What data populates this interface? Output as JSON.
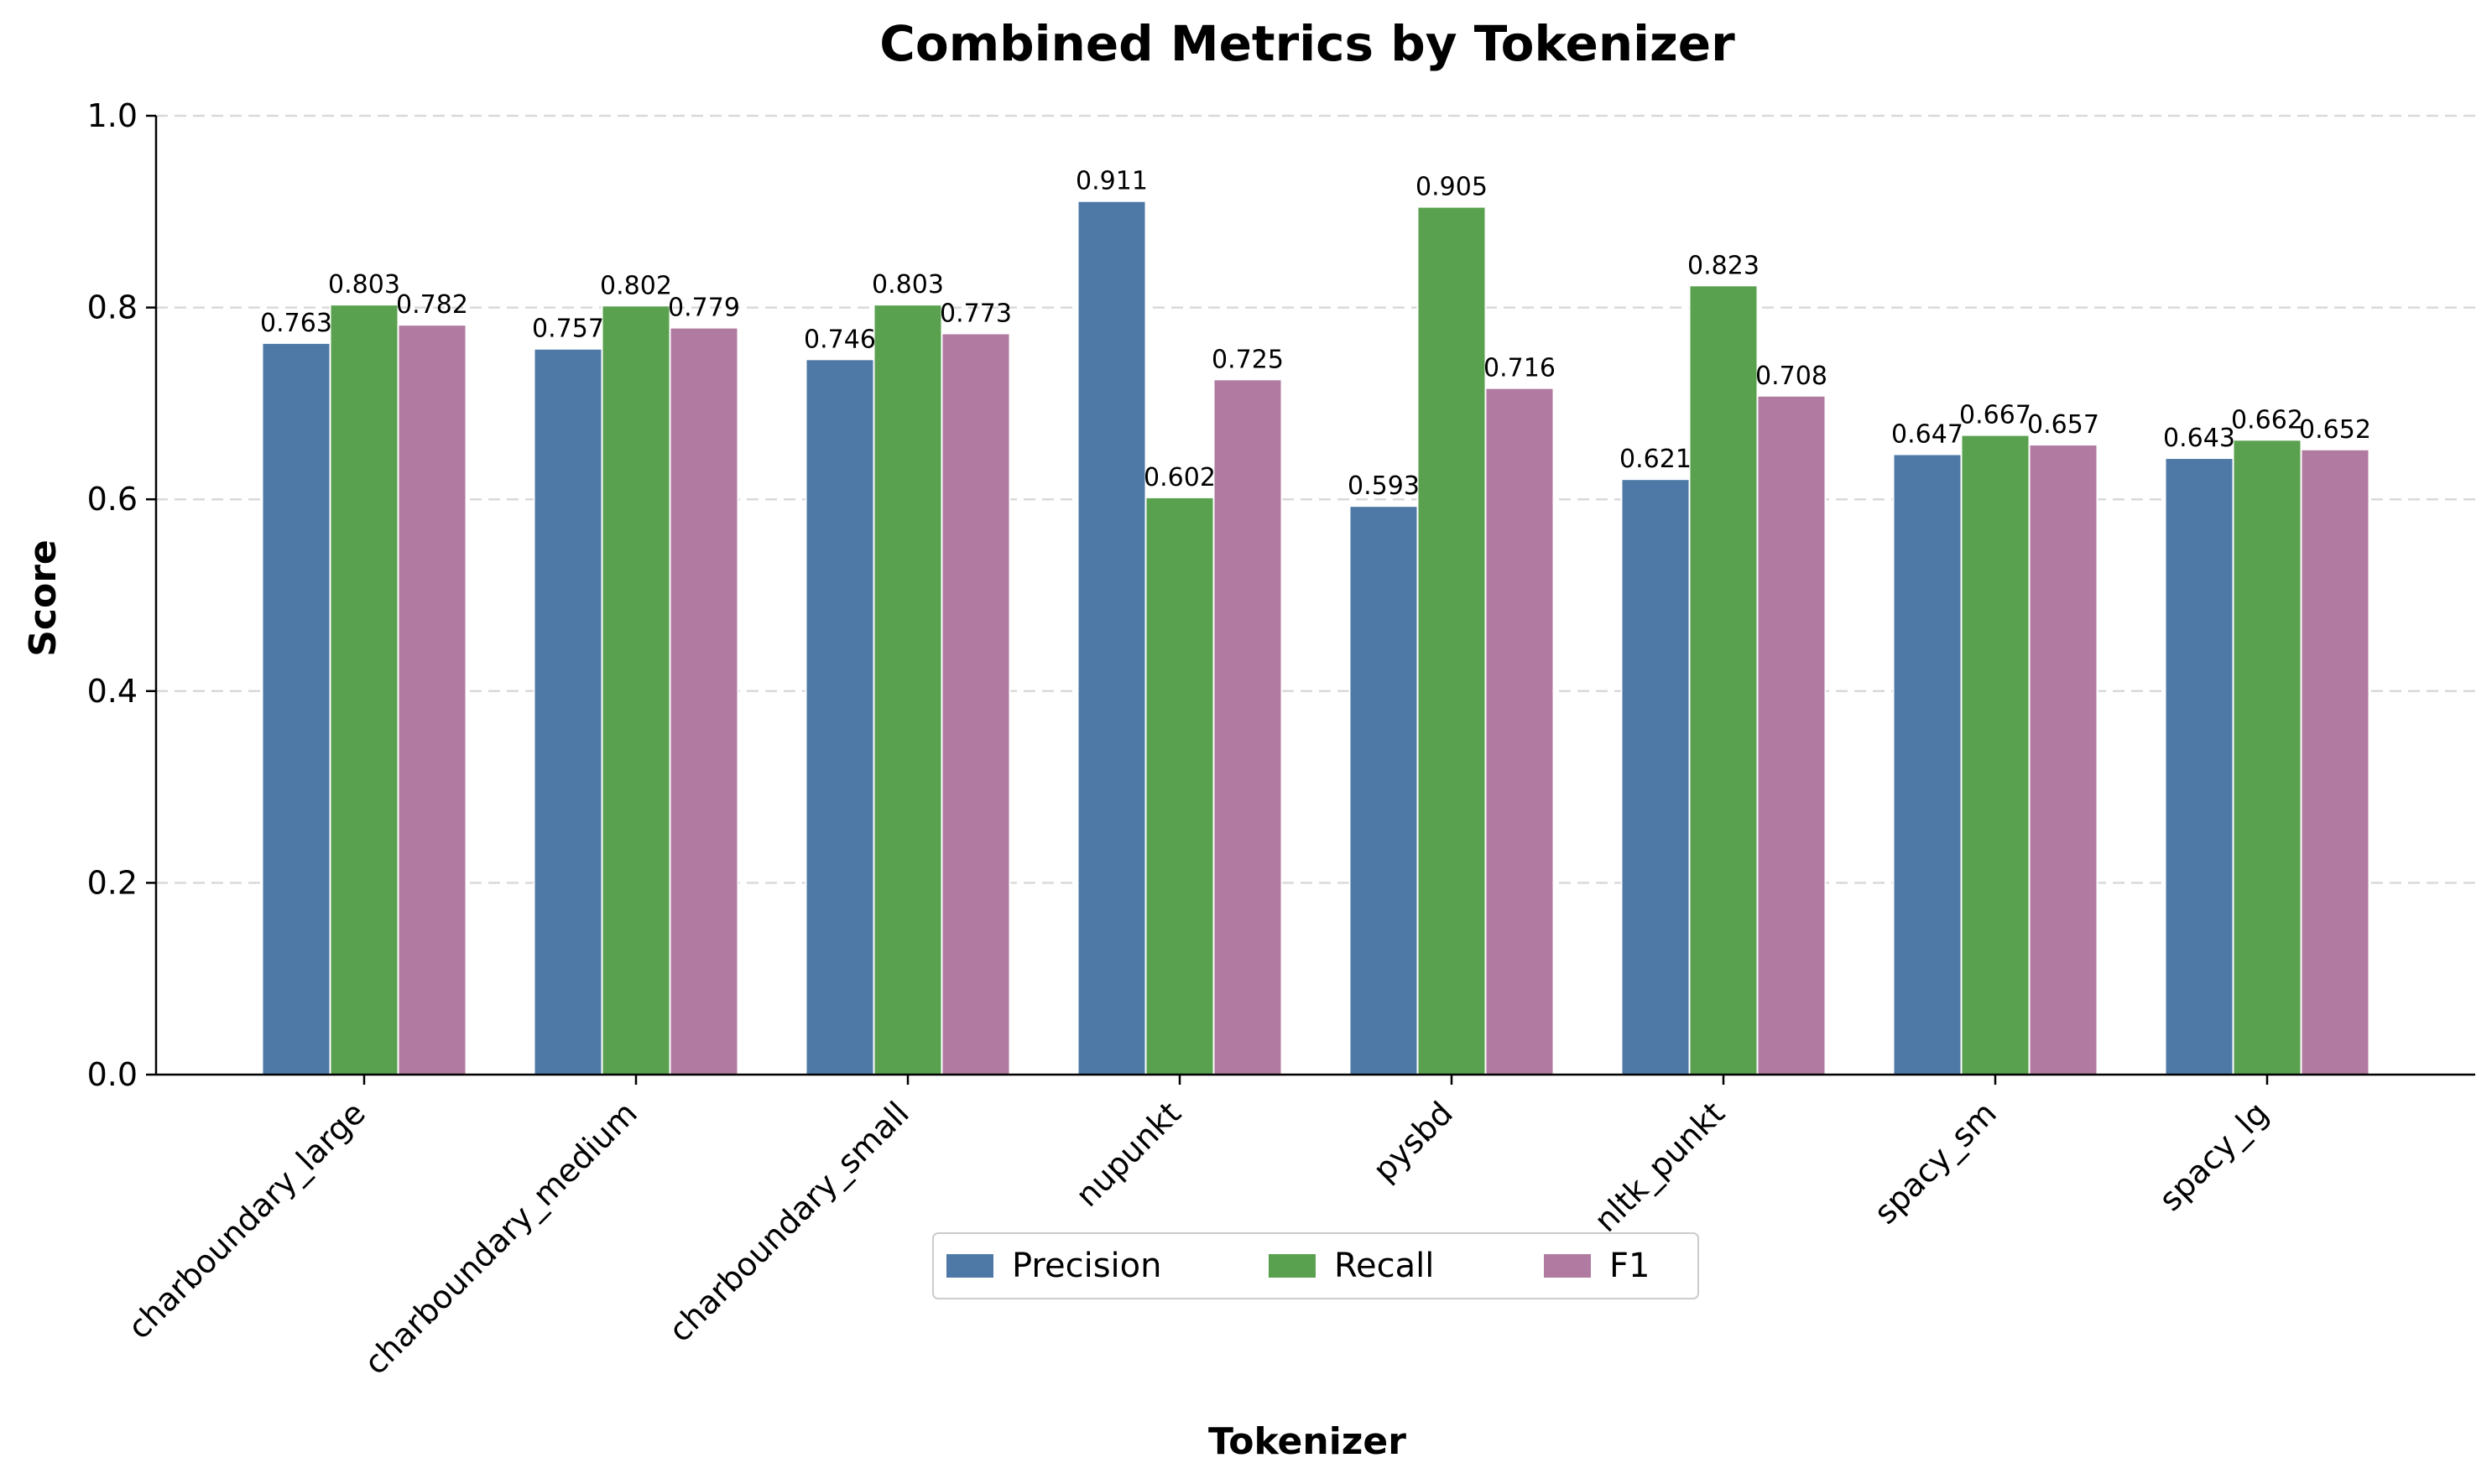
{
  "chart_data": {
    "type": "bar",
    "title": "Combined Metrics by Tokenizer",
    "xlabel": "Tokenizer",
    "ylabel": "Score",
    "ylim": [
      0,
      1.0
    ],
    "yticks": [
      "0.0",
      "0.2",
      "0.4",
      "0.6",
      "0.8",
      "1.0"
    ],
    "grid": "horizontal dashed",
    "legend_position": "bottom-center",
    "categories": [
      "charboundary_large",
      "charboundary_medium",
      "charboundary_small",
      "nupunkt",
      "pysbd",
      "nltk_punkt",
      "spacy_sm",
      "spacy_lg"
    ],
    "series": [
      {
        "name": "Precision",
        "color": "#4e79a7",
        "values": [
          0.763,
          0.757,
          0.746,
          0.911,
          0.593,
          0.621,
          0.647,
          0.643
        ],
        "labels": [
          "0.763",
          "0.757",
          "0.746",
          "0.911",
          "0.593",
          "0.621",
          "0.647",
          "0.643"
        ]
      },
      {
        "name": "Recall",
        "color": "#59a14f",
        "values": [
          0.803,
          0.802,
          0.803,
          0.602,
          0.905,
          0.823,
          0.667,
          0.662
        ],
        "labels": [
          "0.803",
          "0.802",
          "0.803",
          "0.602",
          "0.905",
          "0.823",
          "0.667",
          "0.662"
        ]
      },
      {
        "name": "F1",
        "color": "#b07aa1",
        "values": [
          0.782,
          0.779,
          0.773,
          0.725,
          0.716,
          0.708,
          0.657,
          0.652
        ],
        "labels": [
          "0.782",
          "0.779",
          "0.773",
          "0.725",
          "0.716",
          "0.708",
          "0.657",
          "0.652"
        ]
      }
    ]
  }
}
